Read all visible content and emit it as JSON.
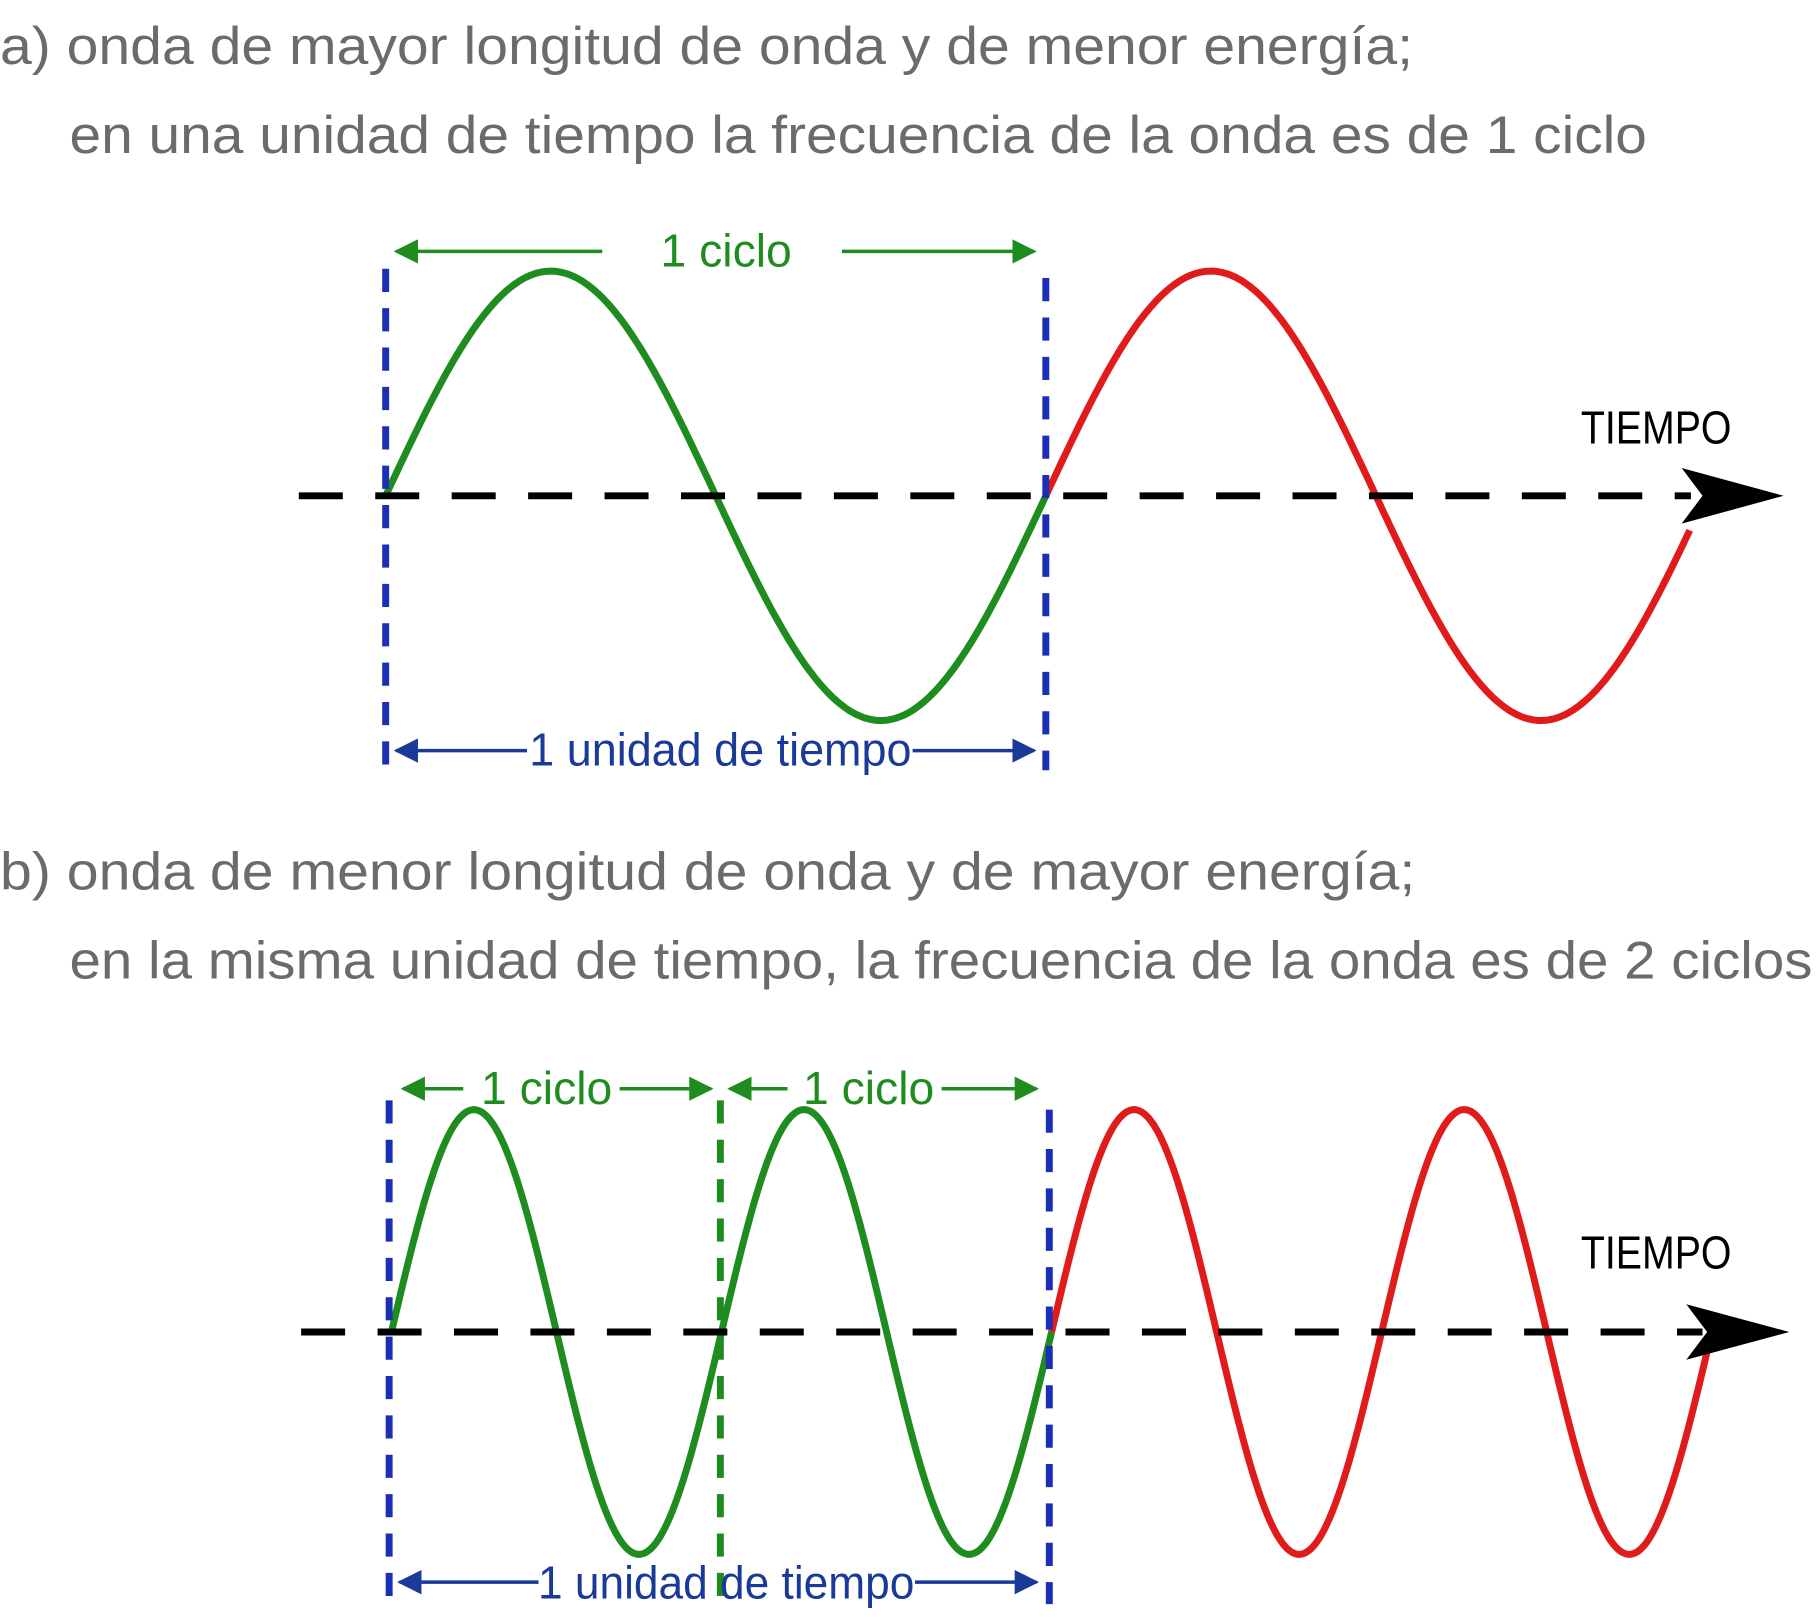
{
  "panels": [
    {
      "title": [
        "a) onda de mayor longitud de onda y de menor energía;",
        "en una unidad de tiempo la frecuencia de la onda es de 1 ciclo"
      ],
      "cycle_labels": [
        "1 ciclo"
      ],
      "time_label": "1 unidad de tiempo",
      "axis_label": "TIEMPO"
    },
    {
      "title": [
        "b) onda de menor longitud de onda y de mayor energía;",
        "en la misma unidad de tiempo, la frecuencia de la onda es de 2 ciclos"
      ],
      "cycle_labels": [
        "1 ciclo",
        "1 ciclo"
      ],
      "time_label": "1 unidad de tiempo",
      "axis_label": "TIEMPO"
    }
  ]
}
